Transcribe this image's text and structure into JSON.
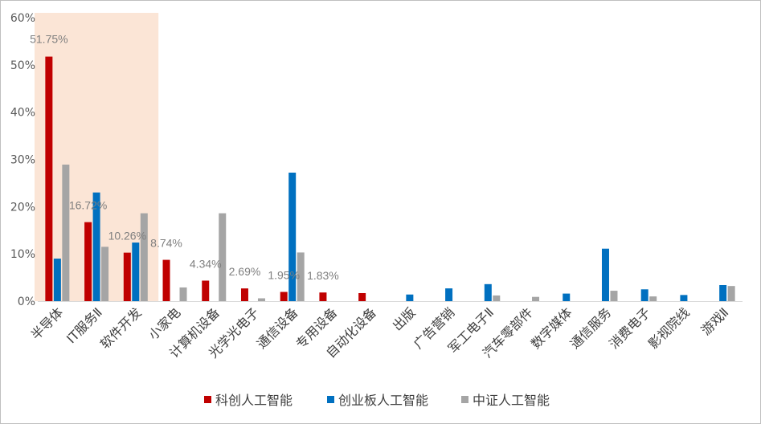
{
  "chart_data": {
    "type": "bar",
    "categories": [
      "半导体",
      "IT服务Ⅱ",
      "软件开发",
      "小家电",
      "计算机设备",
      "光学光电子",
      "通信设备",
      "专用设备",
      "自动化设备",
      "出版",
      "广告营销",
      "军工电子Ⅱ",
      "汽车零部件",
      "数字媒体",
      "通信服务",
      "消费电子",
      "影视院线",
      "游戏Ⅱ"
    ],
    "series": [
      {
        "name": "科创人工智能",
        "color": "#c00000",
        "values": [
          51.75,
          16.72,
          10.26,
          8.74,
          4.34,
          2.69,
          1.95,
          1.83,
          1.7,
          null,
          null,
          null,
          null,
          null,
          null,
          null,
          null,
          null
        ]
      },
      {
        "name": "创业板人工智能",
        "color": "#0070c0",
        "values": [
          9.0,
          23.0,
          12.4,
          null,
          null,
          null,
          27.2,
          null,
          null,
          1.4,
          2.7,
          3.6,
          null,
          1.6,
          11.1,
          2.5,
          1.3,
          3.4
        ]
      },
      {
        "name": "中证人工智能",
        "color": "#a5a5a5",
        "values": [
          28.9,
          11.5,
          18.6,
          2.9,
          18.6,
          0.6,
          10.3,
          null,
          null,
          null,
          null,
          1.2,
          0.9,
          null,
          2.2,
          1.0,
          null,
          3.2
        ]
      }
    ],
    "data_labels": [
      "51.75%",
      "16.72%",
      "10.26%",
      "8.74%",
      "4.34%",
      "2.69%",
      "1.95%",
      "1.83%"
    ],
    "y_ticks": [
      "0%",
      "10%",
      "20%",
      "30%",
      "40%",
      "50%",
      "60%"
    ],
    "ylim": [
      0,
      60
    ],
    "highlight_categories": [
      "半导体",
      "IT服务Ⅱ",
      "软件开发"
    ],
    "highlight_color": "#fbe5d6",
    "legend_position": "bottom",
    "grid": false
  }
}
